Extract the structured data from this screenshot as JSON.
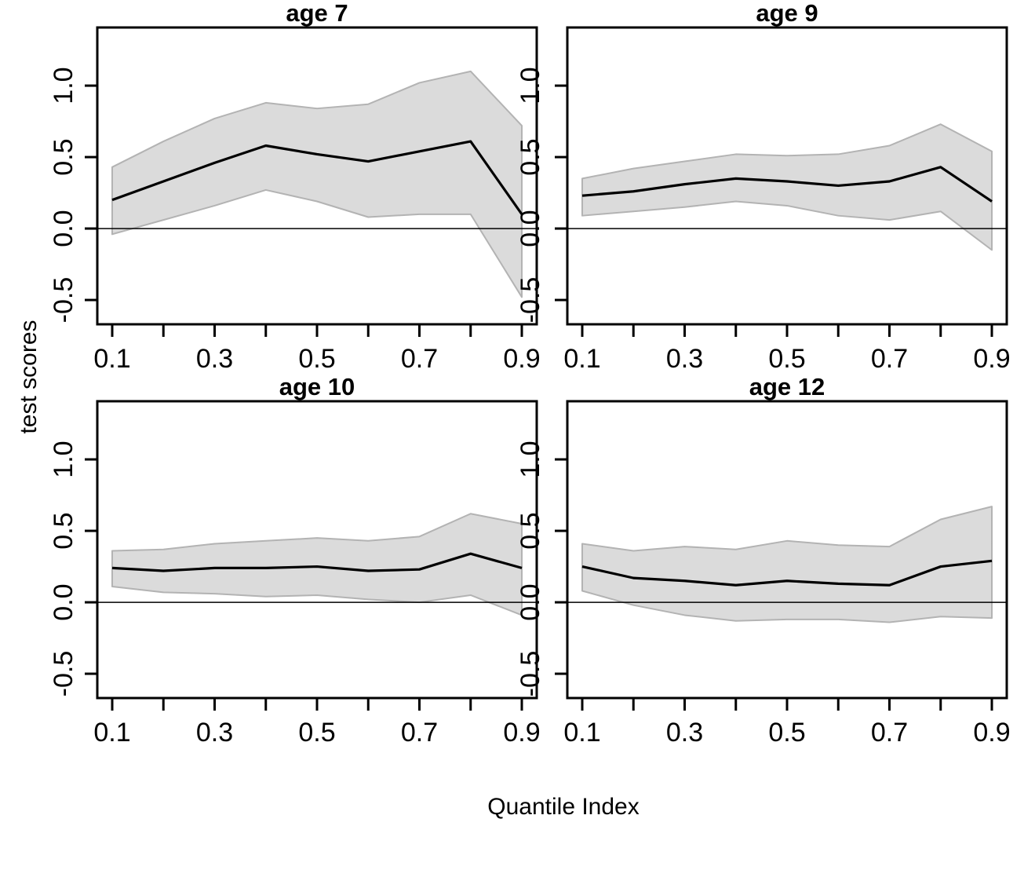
{
  "figure": {
    "xlabel": "Quantile Index",
    "ylabel": "test scores",
    "background": "#ffffff"
  },
  "colors": {
    "band_fill": "#dbdbdb",
    "band_stroke": "#b3b3b3",
    "line": "#000000",
    "axis": "#000000",
    "zero_line": "#000000"
  },
  "chart_data": {
    "type": "line",
    "xlabel": "Quantile Index",
    "ylabel": "test scores",
    "x": [
      0.1,
      0.2,
      0.3,
      0.4,
      0.5,
      0.6,
      0.7,
      0.8,
      0.9
    ],
    "x_tick_positions": [
      0.1,
      0.2,
      0.3,
      0.4,
      0.5,
      0.6,
      0.7,
      0.8,
      0.9
    ],
    "x_labeled_ticks": [
      0.1,
      0.3,
      0.5,
      0.7,
      0.9
    ],
    "y_ticks": [
      -0.5,
      0.0,
      0.5,
      1.0
    ],
    "y_tick_labels": [
      "-0.5",
      "0.0",
      "0.5",
      "1.0"
    ],
    "xlim": [
      0.0709,
      0.9291
    ],
    "ylim": [
      -0.67,
      1.407
    ],
    "hline": 0,
    "grid": false,
    "legend": "none",
    "band_meaning": "confidence interval",
    "panels": [
      {
        "title": "age 7",
        "line": [
          0.2,
          0.33,
          0.46,
          0.58,
          0.52,
          0.47,
          0.54,
          0.61,
          0.1
        ],
        "upper": [
          0.43,
          0.61,
          0.77,
          0.88,
          0.84,
          0.87,
          1.02,
          1.1,
          0.72
        ],
        "lower": [
          -0.04,
          0.06,
          0.16,
          0.27,
          0.19,
          0.08,
          0.1,
          0.1,
          -0.48
        ]
      },
      {
        "title": "age 9",
        "line": [
          0.23,
          0.26,
          0.31,
          0.35,
          0.33,
          0.3,
          0.33,
          0.43,
          0.19
        ],
        "upper": [
          0.35,
          0.42,
          0.47,
          0.52,
          0.51,
          0.52,
          0.58,
          0.73,
          0.54
        ],
        "lower": [
          0.09,
          0.12,
          0.15,
          0.19,
          0.16,
          0.09,
          0.06,
          0.12,
          -0.15
        ]
      },
      {
        "title": "age 10",
        "line": [
          0.24,
          0.22,
          0.24,
          0.24,
          0.25,
          0.22,
          0.23,
          0.34,
          0.24
        ],
        "upper": [
          0.36,
          0.37,
          0.41,
          0.43,
          0.45,
          0.43,
          0.46,
          0.62,
          0.55
        ],
        "lower": [
          0.11,
          0.07,
          0.06,
          0.04,
          0.05,
          0.02,
          0.0,
          0.05,
          -0.09
        ]
      },
      {
        "title": "age 12",
        "line": [
          0.25,
          0.17,
          0.15,
          0.12,
          0.15,
          0.13,
          0.12,
          0.25,
          0.29
        ],
        "upper": [
          0.41,
          0.36,
          0.39,
          0.37,
          0.43,
          0.4,
          0.39,
          0.58,
          0.67
        ],
        "lower": [
          0.08,
          -0.02,
          -0.09,
          -0.13,
          -0.12,
          -0.12,
          -0.14,
          -0.1,
          -0.11
        ]
      }
    ]
  }
}
